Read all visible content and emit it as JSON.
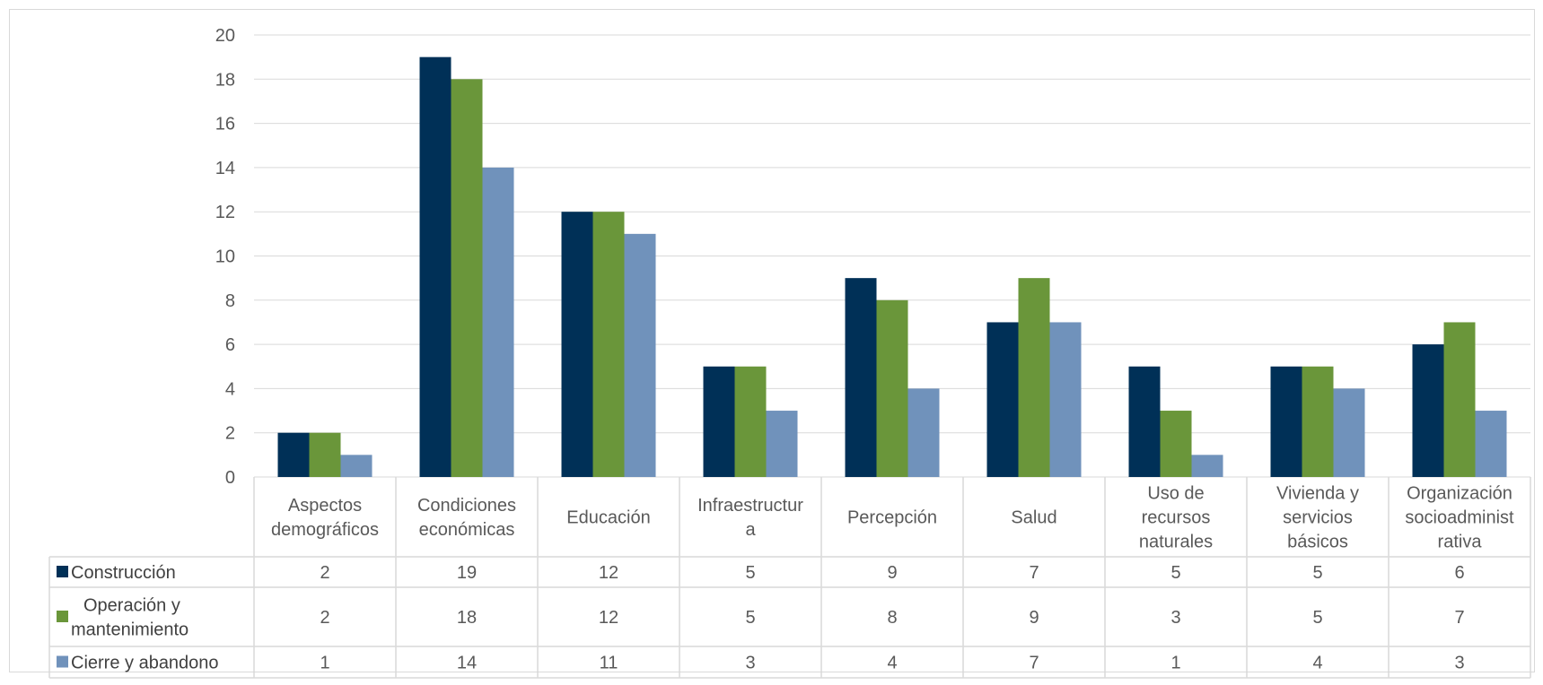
{
  "chart_data": {
    "type": "bar",
    "categories": [
      [
        "Aspectos",
        "demográficos"
      ],
      [
        "Condiciones",
        "económicas"
      ],
      [
        "Educación"
      ],
      [
        "Infraestructur",
        "a"
      ],
      [
        "Percepción"
      ],
      [
        "Salud"
      ],
      [
        "Uso de",
        "recursos",
        "naturales"
      ],
      [
        "Vivienda y",
        "servicios",
        "básicos"
      ],
      [
        "Organización",
        "socioadminist",
        "rativa"
      ]
    ],
    "series": [
      {
        "name": [
          "Construcción"
        ],
        "color": "#003057",
        "values": [
          2,
          19,
          12,
          5,
          9,
          7,
          5,
          5,
          6
        ]
      },
      {
        "name": [
          "Operación y",
          "mantenimiento"
        ],
        "color": "#6a963a",
        "values": [
          2,
          18,
          12,
          5,
          8,
          9,
          3,
          5,
          7
        ]
      },
      {
        "name": [
          "Cierre y abandono"
        ],
        "color": "#7092bb",
        "values": [
          1,
          14,
          11,
          3,
          4,
          7,
          1,
          4,
          3
        ]
      }
    ],
    "yticks": [
      "0",
      "2",
      "4",
      "6",
      "8",
      "10",
      "12",
      "14",
      "16",
      "18",
      "20"
    ],
    "ylim": [
      0,
      20
    ],
    "grid": true,
    "legend": "data-table",
    "colors": {
      "gridline": "#d9d9d9",
      "text": "#595959"
    }
  }
}
